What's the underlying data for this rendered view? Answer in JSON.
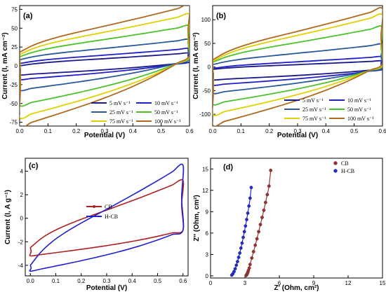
{
  "chart_data": [
    {
      "panel_label": "(a)",
      "type": "line",
      "xlabel": "Potential (V)",
      "ylabel": "Current (I, mA cm⁻²)",
      "xlim": [
        0.0,
        0.6
      ],
      "ylim": [
        -80,
        80
      ],
      "xticks": [
        "0.0",
        "0.1",
        "0.2",
        "0.3",
        "0.4",
        "0.5",
        "0.6"
      ],
      "yticks": [
        "-75",
        "-50",
        "-25",
        "0",
        "25",
        "50",
        "75"
      ],
      "legend_position": "bottom-right",
      "series": [
        {
          "name": "5 mV s⁻¹",
          "color": "#1a1a8c",
          "x": [
            0.0,
            0.6
          ],
          "upper": [
            0,
            17
          ],
          "lower": [
            -12,
            5
          ],
          "center": [
            -4,
            11
          ]
        },
        {
          "name": "10 mV s⁻¹",
          "color": "#2020c8",
          "x": [
            0.0,
            0.6
          ],
          "upper": [
            3,
            23
          ],
          "lower": [
            -18,
            5
          ],
          "center": [
            -6,
            14
          ]
        },
        {
          "name": "25 mV s⁻¹",
          "color": "#2a5a9c",
          "x": [
            0.0,
            0.6
          ],
          "upper": [
            8,
            35
          ],
          "lower": [
            -32,
            8
          ],
          "center": [
            -10,
            20
          ]
        },
        {
          "name": "50 mV s⁻¹",
          "color": "#4cc22a",
          "x": [
            0.0,
            0.6
          ],
          "upper": [
            12,
            53
          ],
          "lower": [
            -52,
            10
          ],
          "center": [
            -17,
            30
          ]
        },
        {
          "name": "75 mV s⁻¹",
          "color": "#e0d000",
          "x": [
            0.0,
            0.6
          ],
          "upper": [
            15,
            68
          ],
          "lower": [
            -68,
            12
          ],
          "center": [
            -24,
            40
          ]
        },
        {
          "name": "100 mV s⁻¹",
          "color": "#b06a1e",
          "x": [
            0.0,
            0.6
          ],
          "upper": [
            18,
            80
          ],
          "lower": [
            -80,
            14
          ],
          "center": [
            -30,
            50
          ]
        }
      ]
    },
    {
      "panel_label": "(b)",
      "type": "line",
      "xlabel": "Potential (V)",
      "ylabel": "Current (I, mA cm⁻²)",
      "xlim": [
        0.0,
        0.6
      ],
      "ylim": [
        -125,
        130
      ],
      "xticks": [
        "0.0",
        "0.1",
        "0.2",
        "0.3",
        "0.4",
        "0.5",
        "0.6"
      ],
      "yticks": [
        "-100",
        "-50",
        "0",
        "50",
        "100"
      ],
      "legend_position": "bottom-right",
      "series": [
        {
          "name": "5 mV s⁻¹",
          "color": "#1a1a8c",
          "x": [
            0.0,
            0.6
          ],
          "upper": [
            -5,
            13
          ],
          "lower": [
            -27,
            -4
          ],
          "center": [
            -10,
            0
          ]
        },
        {
          "name": "10 mV s⁻¹",
          "color": "#2020c8",
          "x": [
            0.0,
            0.6
          ],
          "upper": [
            -3,
            22
          ],
          "lower": [
            -38,
            -5
          ],
          "center": [
            -15,
            5
          ]
        },
        {
          "name": "25 mV s⁻¹",
          "color": "#2a5a9c",
          "x": [
            0.0,
            0.6
          ],
          "upper": [
            5,
            48
          ],
          "lower": [
            -55,
            -2
          ],
          "center": [
            -20,
            20
          ]
        },
        {
          "name": "50 mV s⁻¹",
          "color": "#4cc22a",
          "x": [
            0.0,
            0.6
          ],
          "upper": [
            10,
            85
          ],
          "lower": [
            -78,
            2
          ],
          "center": [
            -30,
            40
          ]
        },
        {
          "name": "75 mV s⁻¹",
          "color": "#e0d000",
          "x": [
            0.0,
            0.6
          ],
          "upper": [
            12,
            110
          ],
          "lower": [
            -100,
            5
          ],
          "center": [
            -40,
            55
          ]
        },
        {
          "name": "100 mV s⁻¹",
          "color": "#b06a1e",
          "x": [
            0.0,
            0.6
          ],
          "upper": [
            15,
            123
          ],
          "lower": [
            -122,
            8
          ],
          "center": [
            -50,
            70
          ]
        }
      ]
    },
    {
      "panel_label": "(c)",
      "type": "line",
      "xlabel": "Potential (V)",
      "ylabel": "Current (I, A g⁻¹)",
      "xlim": [
        -0.02,
        0.62
      ],
      "ylim": [
        -4.9,
        5.1
      ],
      "xticks": [
        "0.0",
        "0.1",
        "0.2",
        "0.3",
        "0.4",
        "0.5",
        "0.6"
      ],
      "yticks": [
        "-4",
        "-2",
        "0",
        "2",
        "4"
      ],
      "legend_position": "center-left",
      "series": [
        {
          "name": "CB",
          "color": "#b02020",
          "marker": "line-dot",
          "x": [
            0.0,
            0.6
          ],
          "upper": [
            -2.5,
            3.2
          ],
          "lower": [
            -3.2,
            -1.0
          ],
          "center": [
            -2.6,
            2.0
          ]
        },
        {
          "name": "H-CB",
          "color": "#2020d0",
          "marker": "line",
          "x": [
            0.0,
            0.6
          ],
          "upper": [
            -4.0,
            4.5
          ],
          "lower": [
            -4.5,
            -1.0
          ],
          "center": [
            -2.0,
            3.2
          ]
        }
      ]
    },
    {
      "panel_label": "(d)",
      "type": "scatter",
      "xlabel": "Z' (Ohm, cm²)",
      "ylabel": "Z'' (Ohm, cm²)",
      "xlim": [
        0,
        15
      ],
      "ylim": [
        -0.3,
        16.5
      ],
      "xticks": [
        "0",
        "3",
        "6",
        "9",
        "12",
        "15"
      ],
      "yticks": [
        "0",
        "3",
        "6",
        "9",
        "12",
        "15"
      ],
      "legend_position": "top-left",
      "series": [
        {
          "name": "CB",
          "color": "#a0302a",
          "x": [
            3.1,
            3.15,
            3.2,
            3.25,
            3.3,
            3.38,
            3.45,
            3.6,
            3.75,
            3.9,
            4.05,
            4.2,
            4.35,
            4.5,
            4.65,
            4.8,
            4.95,
            5.1,
            5.25
          ],
          "y": [
            0.05,
            0.15,
            0.3,
            0.5,
            0.75,
            1.1,
            1.6,
            2.5,
            3.4,
            4.3,
            5.2,
            6.2,
            7.2,
            8.2,
            9.2,
            10.3,
            11.4,
            12.6,
            14.8
          ]
        },
        {
          "name": "H-CB",
          "color": "#1f2ad8",
          "x": [
            1.85,
            1.95,
            2.05,
            2.15,
            2.25,
            2.35,
            2.45,
            2.55,
            2.65,
            2.75,
            2.85,
            2.95,
            3.05,
            3.15,
            3.25,
            3.35,
            3.45,
            3.55
          ],
          "y": [
            0.1,
            0.3,
            0.6,
            1.0,
            1.5,
            2.0,
            2.6,
            3.2,
            3.9,
            4.6,
            5.4,
            6.2,
            7.0,
            7.9,
            8.8,
            9.8,
            10.9,
            12.4
          ]
        }
      ]
    }
  ]
}
